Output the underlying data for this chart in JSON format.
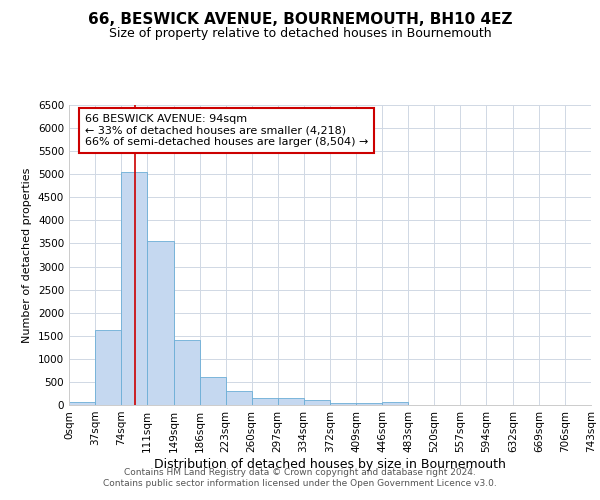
{
  "title": "66, BESWICK AVENUE, BOURNEMOUTH, BH10 4EZ",
  "subtitle": "Size of property relative to detached houses in Bournemouth",
  "xlabel": "Distribution of detached houses by size in Bournemouth",
  "ylabel": "Number of detached properties",
  "footer_line1": "Contains HM Land Registry data © Crown copyright and database right 2024.",
  "footer_line2": "Contains public sector information licensed under the Open Government Licence v3.0.",
  "annotation_title": "66 BESWICK AVENUE: 94sqm",
  "annotation_line1": "← 33% of detached houses are smaller (4,218)",
  "annotation_line2": "66% of semi-detached houses are larger (8,504) →",
  "bar_edges": [
    0,
    37,
    74,
    111,
    149,
    186,
    223,
    260,
    297,
    334,
    372,
    409,
    446,
    483,
    520,
    557,
    594,
    632,
    669,
    706,
    743
  ],
  "bar_heights": [
    75,
    1620,
    5050,
    3560,
    1400,
    610,
    300,
    160,
    145,
    100,
    50,
    40,
    55,
    0,
    0,
    0,
    0,
    0,
    0,
    0
  ],
  "bar_color": "#c5d8f0",
  "bar_edge_color": "#6baed6",
  "vline_color": "#cc0000",
  "vline_x": 94,
  "ylim": [
    0,
    6500
  ],
  "yticks": [
    0,
    500,
    1000,
    1500,
    2000,
    2500,
    3000,
    3500,
    4000,
    4500,
    5000,
    5500,
    6000,
    6500
  ],
  "xlim": [
    0,
    743
  ],
  "title_fontsize": 11,
  "subtitle_fontsize": 9,
  "xlabel_fontsize": 9,
  "ylabel_fontsize": 8,
  "tick_fontsize": 7.5,
  "annotation_fontsize": 8,
  "annotation_box_color": "#ffffff",
  "annotation_box_edge": "#cc0000",
  "background_color": "#ffffff",
  "grid_color": "#d0d8e4",
  "footer_fontsize": 6.5,
  "footer_color": "#555555"
}
